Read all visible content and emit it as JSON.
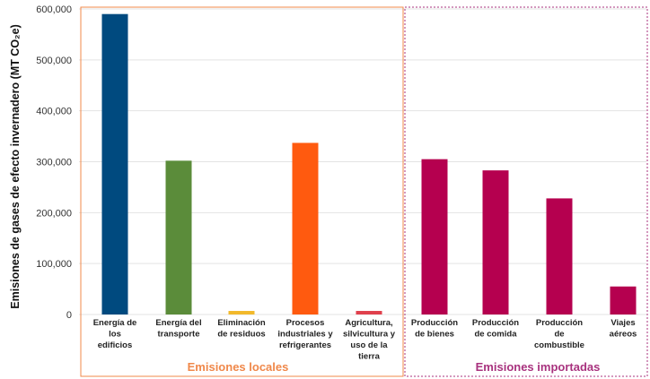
{
  "chart_data": {
    "type": "bar",
    "title": "",
    "xlabel": "",
    "ylabel": "Emisiones de gases de efecto invernadero (MT CO₂e)",
    "ylim": [
      0,
      600000
    ],
    "yticks": [
      "0",
      "100,000",
      "200,000",
      "300,000",
      "400,000",
      "500,000",
      "600,000"
    ],
    "grid": true,
    "categories": [
      [
        "Energía de",
        "los",
        "edificios"
      ],
      [
        "Energía del",
        "transporte"
      ],
      [
        "Eliminación",
        "de residuos"
      ],
      [
        "Procesos",
        "industriales y",
        "refrigerantes"
      ],
      [
        "Agricultura,",
        "silvicultura y",
        "uso de la",
        "tierra"
      ],
      [
        "Producción",
        "de bienes"
      ],
      [
        "Producción",
        "de comida"
      ],
      [
        "Producción",
        "de",
        "combustible"
      ],
      [
        "Viajes",
        "aéreos"
      ]
    ],
    "values": [
      590000,
      302000,
      7000,
      337000,
      7000,
      305000,
      283000,
      228000,
      55000
    ],
    "colors": [
      "#004a7f",
      "#5b8c3a",
      "#f2b92b",
      "#ff5a0f",
      "#e0404c",
      "#b5004f",
      "#b5004f",
      "#b5004f",
      "#b5004f"
    ],
    "groups": [
      {
        "label": "Emisiones locales",
        "first": 0,
        "last": 4,
        "color": "#f0884a"
      },
      {
        "label": "Emisiones importadas",
        "first": 5,
        "last": 8,
        "color": "#a8327e"
      }
    ]
  }
}
